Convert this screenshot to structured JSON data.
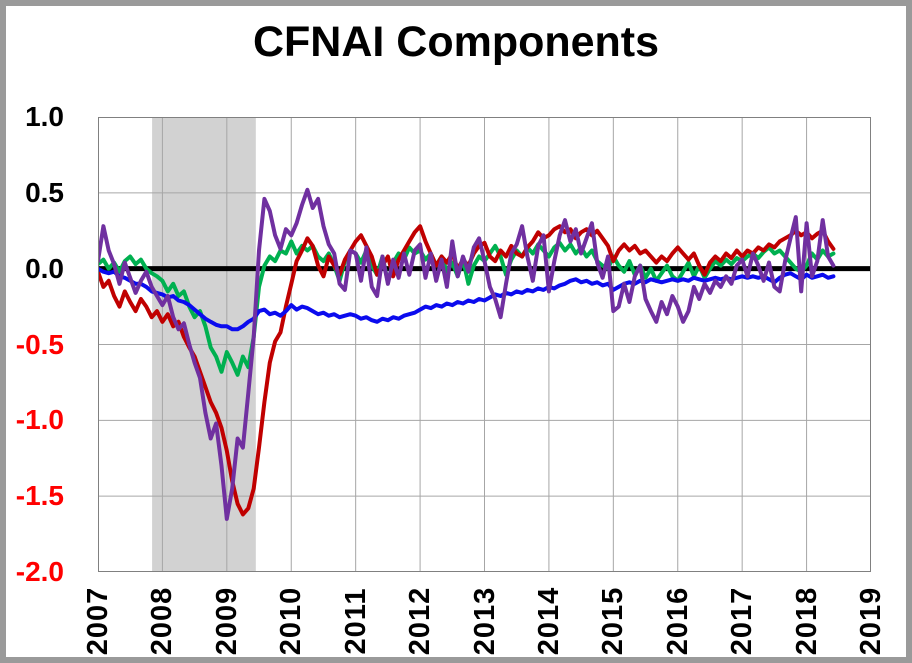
{
  "title": "CFNAI Components",
  "frame": {
    "border_color": "#9a9a9a",
    "background_color": "#ffffff"
  },
  "chart_data": {
    "type": "line",
    "title": "CFNAI Components",
    "xlabel": "",
    "ylabel": "",
    "legend": "none",
    "grid": true,
    "gridline_color": "#a6a6a6",
    "plot_border_color": "#808080",
    "xlim": [
      2007,
      2019
    ],
    "ylim": [
      -2.0,
      1.0
    ],
    "x_ticks": [
      {
        "label": "2007",
        "value": 2007
      },
      {
        "label": "2008",
        "value": 2008
      },
      {
        "label": "2009",
        "value": 2009
      },
      {
        "label": "2010",
        "value": 2010
      },
      {
        "label": "2011",
        "value": 2011
      },
      {
        "label": "2012",
        "value": 2012
      },
      {
        "label": "2013",
        "value": 2013
      },
      {
        "label": "2014",
        "value": 2014
      },
      {
        "label": "2015",
        "value": 2015
      },
      {
        "label": "2016",
        "value": 2016
      },
      {
        "label": "2017",
        "value": 2017
      },
      {
        "label": "2018",
        "value": 2018
      },
      {
        "label": "2019",
        "value": 2019
      }
    ],
    "y_ticks": [
      {
        "label": "1.0",
        "value": 1.0
      },
      {
        "label": "0.5",
        "value": 0.5
      },
      {
        "label": "0.0",
        "value": 0.0
      },
      {
        "label": "-0.5",
        "value": -0.5
      },
      {
        "label": "-1.0",
        "value": -1.0
      },
      {
        "label": "-1.5",
        "value": -1.5
      },
      {
        "label": "-2.0",
        "value": -2.0
      }
    ],
    "y_tick_colors": {
      "positive_and_zero": "#000000",
      "negative": "#ff0000"
    },
    "zero_line": {
      "value": 0.0,
      "color": "#000000",
      "width": 5
    },
    "recession_band": {
      "start": 2007.84,
      "end": 2009.45,
      "color": "#d2d2d2"
    },
    "x_start_year": 2007,
    "points_per_year": 12,
    "line_width": 4,
    "series": [
      {
        "name": "green",
        "color": "#00b050",
        "values": [
          0.03,
          0.06,
          0.0,
          0.04,
          -0.02,
          0.05,
          0.08,
          0.03,
          0.06,
          0.0,
          -0.03,
          -0.05,
          -0.08,
          -0.15,
          -0.1,
          -0.18,
          -0.15,
          -0.25,
          -0.32,
          -0.28,
          -0.38,
          -0.52,
          -0.58,
          -0.68,
          -0.55,
          -0.62,
          -0.7,
          -0.58,
          -0.65,
          -0.45,
          -0.12,
          0.02,
          0.08,
          0.05,
          0.12,
          0.1,
          0.18,
          0.1,
          0.15,
          0.12,
          0.15,
          0.08,
          0.05,
          0.1,
          0.02,
          -0.08,
          0.05,
          0.12,
          0.1,
          0.04,
          0.12,
          0.02,
          -0.04,
          0.08,
          -0.09,
          0.04,
          0.1,
          0.06,
          0.14,
          0.1,
          0.12,
          0.06,
          0.1,
          0.02,
          0.08,
          -0.02,
          0.04,
          -0.05,
          0.06,
          -0.1,
          0.02,
          0.08,
          0.05,
          0.1,
          0.15,
          0.08,
          -0.04,
          0.06,
          0.12,
          0.08,
          0.14,
          0.1,
          0.16,
          0.12,
          0.08,
          0.14,
          0.17,
          0.12,
          0.16,
          0.1,
          0.14,
          0.08,
          0.12,
          0.05,
          0.02,
          0.0,
          0.08,
          0.02,
          -0.02,
          0.05,
          -0.04,
          0.02,
          -0.06,
          0.0,
          -0.08,
          -0.03,
          0.02,
          -0.05,
          -0.08,
          -0.02,
          0.04,
          -0.05,
          0.02,
          -0.06,
          0.0,
          0.05,
          0.02,
          0.06,
          0.03,
          0.07,
          0.05,
          0.08,
          0.1,
          0.07,
          0.11,
          0.14,
          0.1,
          0.12,
          0.08,
          0.04,
          0.0,
          -0.02,
          0.02,
          0.1,
          0.06,
          0.12,
          0.08,
          0.1
        ]
      },
      {
        "name": "red",
        "color": "#c00000",
        "values": [
          -0.02,
          -0.12,
          -0.08,
          -0.18,
          -0.25,
          -0.15,
          -0.22,
          -0.28,
          -0.2,
          -0.25,
          -0.32,
          -0.28,
          -0.35,
          -0.3,
          -0.38,
          -0.35,
          -0.45,
          -0.52,
          -0.58,
          -0.68,
          -0.78,
          -0.88,
          -0.95,
          -1.05,
          -1.2,
          -1.4,
          -1.55,
          -1.62,
          -1.58,
          -1.45,
          -1.18,
          -0.88,
          -0.62,
          -0.48,
          -0.42,
          -0.25,
          -0.1,
          0.05,
          0.12,
          0.2,
          0.15,
          0.02,
          -0.05,
          0.08,
          0.02,
          -0.04,
          0.06,
          0.12,
          0.18,
          0.22,
          0.15,
          0.08,
          -0.04,
          0.02,
          0.08,
          -0.05,
          0.06,
          0.12,
          0.18,
          0.24,
          0.28,
          0.18,
          0.1,
          0.02,
          0.08,
          0.04,
          0.1,
          0.0,
          0.06,
          0.02,
          0.1,
          0.15,
          0.17,
          0.08,
          0.05,
          0.12,
          0.08,
          0.15,
          0.1,
          0.08,
          0.14,
          0.18,
          0.24,
          0.2,
          0.22,
          0.26,
          0.28,
          0.24,
          0.26,
          0.2,
          0.24,
          0.26,
          0.22,
          0.25,
          0.2,
          0.15,
          0.05,
          0.12,
          0.16,
          0.12,
          0.15,
          0.1,
          0.12,
          0.08,
          0.04,
          0.08,
          0.05,
          0.1,
          0.14,
          0.1,
          0.06,
          0.1,
          0.02,
          -0.04,
          0.04,
          0.08,
          0.05,
          0.1,
          0.07,
          0.12,
          0.08,
          0.12,
          0.1,
          0.14,
          0.12,
          0.16,
          0.14,
          0.18,
          0.2,
          0.22,
          0.25,
          0.22,
          0.24,
          0.2,
          0.23,
          0.25,
          0.18,
          0.13
        ]
      },
      {
        "name": "blue",
        "color": "#0b0bee",
        "values": [
          0.0,
          -0.02,
          -0.03,
          -0.02,
          -0.05,
          -0.06,
          -0.08,
          -0.1,
          -0.1,
          -0.12,
          -0.15,
          -0.16,
          -0.17,
          -0.19,
          -0.18,
          -0.21,
          -0.22,
          -0.24,
          -0.27,
          -0.3,
          -0.33,
          -0.35,
          -0.37,
          -0.38,
          -0.38,
          -0.4,
          -0.4,
          -0.38,
          -0.35,
          -0.33,
          -0.28,
          -0.27,
          -0.3,
          -0.29,
          -0.31,
          -0.28,
          -0.24,
          -0.27,
          -0.25,
          -0.26,
          -0.28,
          -0.3,
          -0.29,
          -0.31,
          -0.3,
          -0.32,
          -0.31,
          -0.3,
          -0.31,
          -0.33,
          -0.32,
          -0.34,
          -0.35,
          -0.33,
          -0.34,
          -0.32,
          -0.33,
          -0.31,
          -0.3,
          -0.29,
          -0.27,
          -0.25,
          -0.26,
          -0.24,
          -0.25,
          -0.23,
          -0.24,
          -0.22,
          -0.23,
          -0.21,
          -0.22,
          -0.2,
          -0.21,
          -0.19,
          -0.17,
          -0.18,
          -0.16,
          -0.17,
          -0.15,
          -0.16,
          -0.14,
          -0.15,
          -0.13,
          -0.14,
          -0.12,
          -0.13,
          -0.11,
          -0.1,
          -0.08,
          -0.07,
          -0.09,
          -0.08,
          -0.1,
          -0.09,
          -0.11,
          -0.1,
          -0.14,
          -0.12,
          -0.1,
          -0.09,
          -0.1,
          -0.08,
          -0.09,
          -0.07,
          -0.08,
          -0.09,
          -0.08,
          -0.07,
          -0.08,
          -0.07,
          -0.08,
          -0.06,
          -0.07,
          -0.08,
          -0.07,
          -0.06,
          -0.07,
          -0.06,
          -0.07,
          -0.06,
          -0.05,
          -0.06,
          -0.05,
          -0.06,
          -0.05,
          -0.07,
          -0.09,
          -0.06,
          -0.04,
          -0.03,
          -0.05,
          -0.07,
          -0.04,
          -0.06,
          -0.05,
          -0.04,
          -0.06,
          -0.05
        ]
      },
      {
        "name": "purple",
        "color": "#7030a0",
        "values": [
          0.05,
          0.28,
          0.12,
          0.03,
          -0.1,
          0.04,
          -0.06,
          -0.16,
          -0.08,
          -0.02,
          -0.12,
          -0.18,
          -0.24,
          -0.18,
          -0.32,
          -0.4,
          -0.36,
          -0.5,
          -0.62,
          -0.72,
          -0.95,
          -1.12,
          -1.02,
          -1.3,
          -1.65,
          -1.45,
          -1.12,
          -1.18,
          -0.82,
          -0.45,
          0.12,
          0.46,
          0.38,
          0.22,
          0.13,
          0.26,
          0.22,
          0.3,
          0.42,
          0.52,
          0.4,
          0.46,
          0.28,
          0.16,
          0.1,
          -0.1,
          -0.14,
          0.12,
          0.1,
          -0.08,
          0.14,
          -0.12,
          -0.18,
          0.08,
          -0.1,
          0.06,
          -0.06,
          0.1,
          -0.04,
          0.12,
          0.16,
          -0.06,
          0.1,
          -0.08,
          0.06,
          -0.12,
          0.18,
          -0.05,
          0.08,
          -0.02,
          0.14,
          0.2,
          0.05,
          -0.12,
          -0.2,
          -0.32,
          -0.1,
          0.1,
          0.16,
          0.28,
          0.08,
          -0.08,
          0.15,
          0.22,
          -0.15,
          0.05,
          0.22,
          0.32,
          0.18,
          0.26,
          0.1,
          0.2,
          0.3,
          0.04,
          -0.06,
          0.08,
          -0.28,
          -0.25,
          -0.1,
          -0.22,
          -0.05,
          0.02,
          -0.2,
          -0.28,
          -0.35,
          -0.22,
          -0.3,
          -0.18,
          -0.25,
          -0.35,
          -0.28,
          -0.12,
          -0.2,
          -0.1,
          -0.16,
          -0.08,
          -0.12,
          -0.05,
          -0.1,
          0.02,
          0.06,
          -0.05,
          0.1,
          0.02,
          -0.08,
          0.04,
          -0.12,
          -0.15,
          0.05,
          0.2,
          0.34,
          -0.15,
          0.3,
          -0.05,
          0.05,
          0.32,
          0.08,
          0.02
        ]
      }
    ]
  }
}
